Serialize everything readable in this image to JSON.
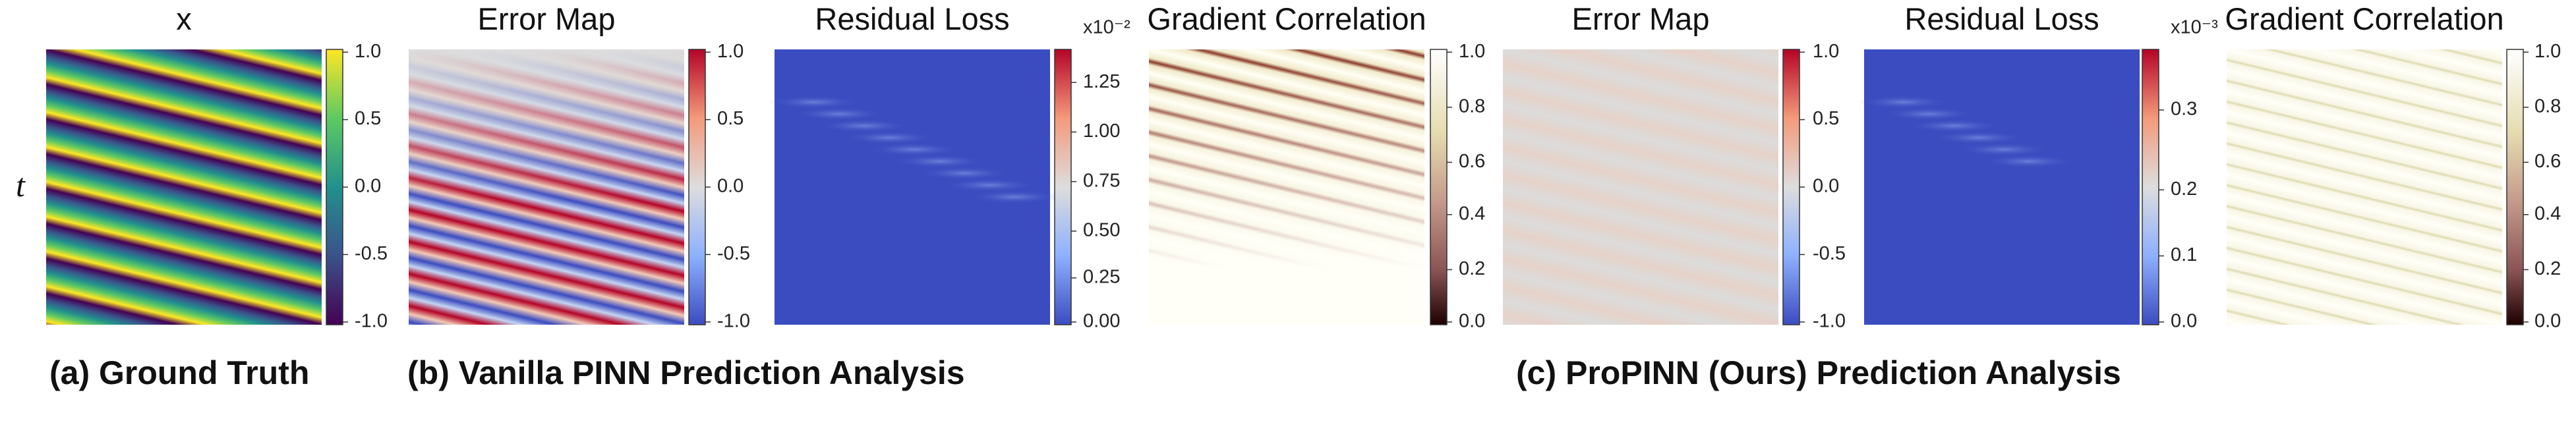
{
  "y_label": "t",
  "panels": [
    {
      "title": "x",
      "colorbar_ticks": [
        "1.0",
        "0.5",
        "0.0",
        "-0.5",
        "-1.0"
      ]
    },
    {
      "title": "Error Map",
      "colorbar_ticks": [
        "1.0",
        "0.5",
        "0.0",
        "-0.5",
        "-1.0"
      ]
    },
    {
      "title": "Residual Loss",
      "scale": "x10⁻²",
      "colorbar_ticks": [
        "1.25",
        "1.00",
        "0.75",
        "0.50",
        "0.25",
        "0.00"
      ]
    },
    {
      "title": "Gradient Correlation",
      "colorbar_ticks": [
        "1.0",
        "0.8",
        "0.6",
        "0.4",
        "0.2",
        "0.0"
      ]
    },
    {
      "title": "Error Map",
      "colorbar_ticks": [
        "1.0",
        "0.5",
        "0.0",
        "-0.5",
        "-1.0"
      ]
    },
    {
      "title": "Residual Loss",
      "scale": "x10⁻³",
      "colorbar_ticks": [
        "0.3",
        "0.2",
        "0.1",
        "0.0"
      ]
    },
    {
      "title": "Gradient Correlation",
      "colorbar_ticks": [
        "1.0",
        "0.8",
        "0.6",
        "0.4",
        "0.2",
        "0.0"
      ]
    }
  ],
  "captions": [
    "(a) Ground Truth",
    "(b) Vanilla PINN Prediction Analysis",
    "(c) ProPINN (Ours) Prediction Analysis"
  ]
}
